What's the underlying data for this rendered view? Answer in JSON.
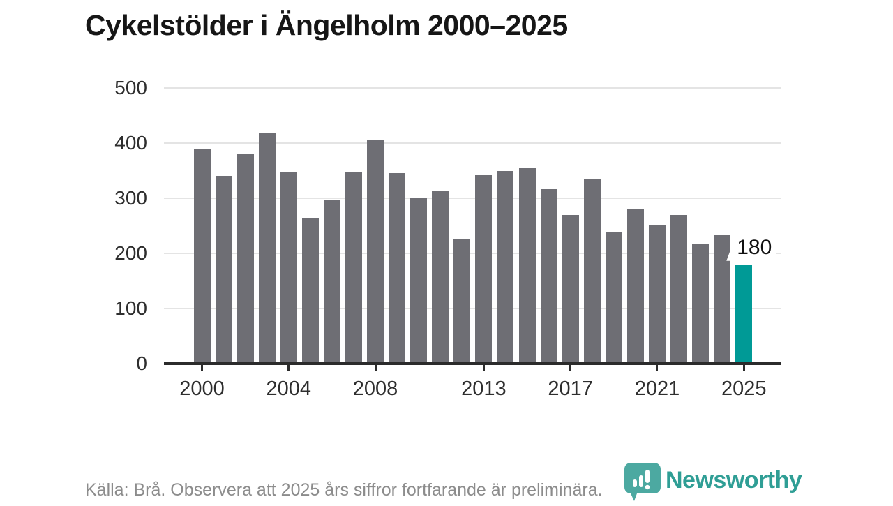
{
  "title": "Cykelstölder i Ängelholm 2000–2025",
  "chart_data": {
    "type": "bar",
    "title": "Cykelstölder i Ängelholm 2000–2025",
    "categories": [
      2000,
      2001,
      2002,
      2003,
      2004,
      2005,
      2006,
      2007,
      2008,
      2009,
      2010,
      2011,
      2012,
      2013,
      2014,
      2015,
      2016,
      2017,
      2018,
      2019,
      2020,
      2021,
      2022,
      2023,
      2024,
      2025
    ],
    "values": [
      390,
      340,
      380,
      418,
      348,
      264,
      298,
      348,
      406,
      345,
      300,
      314,
      225,
      342,
      349,
      355,
      316,
      270,
      336,
      238,
      280,
      252,
      270,
      216,
      233,
      180
    ],
    "xlabel": "",
    "ylabel": "",
    "ylim": [
      0,
      500
    ],
    "yticks": [
      0,
      100,
      200,
      300,
      400,
      500
    ],
    "xtick_years": [
      2000,
      2004,
      2008,
      2013,
      2017,
      2021,
      2025
    ],
    "grid": "horizontal",
    "legend_position": "none",
    "bar_color": "#6e6e74",
    "highlight_index": 25,
    "highlight_color": "#009a96",
    "highlight_label": "180",
    "annotation": "180"
  },
  "footer": {
    "source_text": "Källa: Brå. Observera att 2025 års siffror fortfarande är preliminära."
  },
  "logo": {
    "brand": "Newsworthy",
    "badge_color": "#3fa39a",
    "wordmark_color": "#2f9e95",
    "icon": "pin-badge-bar-chart-icon"
  }
}
